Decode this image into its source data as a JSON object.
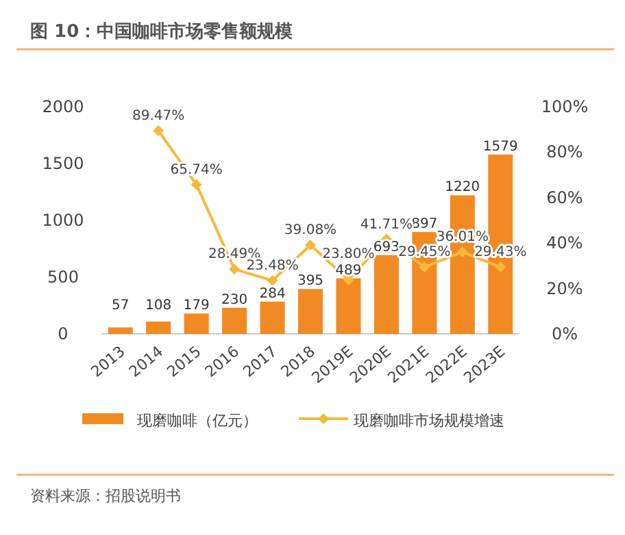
{
  "chart_data": {
    "type": "bar",
    "title": "图 10：中国咖啡市场零售额规模",
    "categories": [
      "2013",
      "2014",
      "2015",
      "2016",
      "2017",
      "2018",
      "2019E",
      "2020E",
      "2021E",
      "2022E",
      "2023E"
    ],
    "series": [
      {
        "name": "现磨咖啡（亿元）",
        "color": "#f28a24",
        "values": [
          57,
          108,
          179,
          230,
          284,
          395,
          489,
          693,
          897,
          1220,
          1579
        ],
        "value_labels": [
          "57",
          "108",
          "179",
          "230",
          "284",
          "395",
          "489",
          "693",
          "897",
          "1220",
          "1579"
        ]
      },
      {
        "name": "现磨咖啡市场规模增速",
        "type": "line",
        "axis": "y2",
        "color": "#f6b93b",
        "values": [
          null,
          89.47,
          65.74,
          28.49,
          23.48,
          39.08,
          23.8,
          41.71,
          29.45,
          36.01,
          29.43
        ],
        "value_labels": [
          null,
          "89.47%",
          "65.74%",
          "28.49%",
          "23.48%",
          "39.08%",
          "23.80%",
          "41.71%",
          "29.45%",
          "36.01%",
          "29.43%"
        ]
      }
    ],
    "ylim": [
      0,
      2000
    ],
    "yticks": [
      0,
      500,
      1000,
      1500,
      2000
    ],
    "y2lim": [
      0,
      100
    ],
    "y2ticks": [
      {
        "value": 0,
        "label": "0%"
      },
      {
        "value": 20,
        "label": "20%"
      },
      {
        "value": 40,
        "label": "40%"
      },
      {
        "value": 60,
        "label": "60%"
      },
      {
        "value": 80,
        "label": "80%"
      },
      {
        "value": 100,
        "label": "100%"
      }
    ],
    "legend": "bottom",
    "marker": "diamond",
    "annotations": [
      "资料来源：招股说明书"
    ]
  }
}
